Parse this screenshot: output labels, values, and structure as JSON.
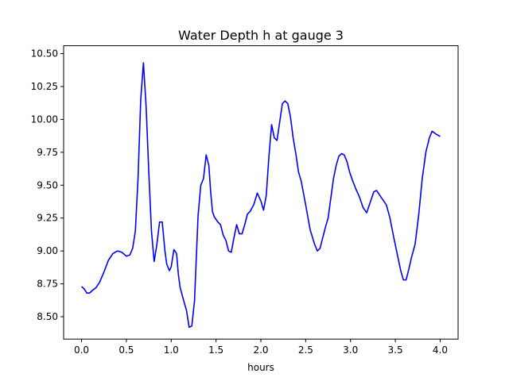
{
  "chart_data": {
    "type": "line",
    "title": "Water Depth h at gauge 3",
    "xlabel": "hours",
    "ylabel": "",
    "xlim": [
      -0.2,
      4.2
    ],
    "ylim": [
      8.33,
      10.56
    ],
    "xticks": [
      0.0,
      0.5,
      1.0,
      1.5,
      2.0,
      2.5,
      3.0,
      3.5,
      4.0
    ],
    "xtick_labels": [
      "0.0",
      "0.5",
      "1.0",
      "1.5",
      "2.0",
      "2.5",
      "3.0",
      "3.5",
      "4.0"
    ],
    "yticks": [
      8.5,
      8.75,
      9.0,
      9.25,
      9.5,
      9.75,
      10.0,
      10.25,
      10.5
    ],
    "ytick_labels": [
      "8.50",
      "8.75",
      "9.00",
      "9.25",
      "9.50",
      "9.75",
      "10.00",
      "10.25",
      "10.50"
    ],
    "grid": false,
    "series": [
      {
        "color": "#0000ff",
        "x": [
          0.0,
          0.03,
          0.06,
          0.09,
          0.12,
          0.16,
          0.2,
          0.25,
          0.3,
          0.35,
          0.4,
          0.45,
          0.5,
          0.54,
          0.57,
          0.6,
          0.63,
          0.66,
          0.69,
          0.72,
          0.75,
          0.78,
          0.81,
          0.84,
          0.87,
          0.9,
          0.93,
          0.95,
          0.98,
          1.0,
          1.03,
          1.06,
          1.08,
          1.1,
          1.12,
          1.14,
          1.17,
          1.2,
          1.23,
          1.26,
          1.28,
          1.3,
          1.33,
          1.36,
          1.39,
          1.42,
          1.44,
          1.46,
          1.48,
          1.5,
          1.52,
          1.55,
          1.58,
          1.61,
          1.64,
          1.67,
          1.7,
          1.73,
          1.76,
          1.79,
          1.82,
          1.85,
          1.88,
          1.92,
          1.96,
          2.0,
          2.03,
          2.06,
          2.09,
          2.12,
          2.15,
          2.18,
          2.21,
          2.24,
          2.27,
          2.3,
          2.33,
          2.36,
          2.39,
          2.42,
          2.45,
          2.5,
          2.55,
          2.6,
          2.63,
          2.66,
          2.69,
          2.72,
          2.75,
          2.78,
          2.81,
          2.84,
          2.87,
          2.9,
          2.93,
          2.96,
          2.99,
          3.02,
          3.06,
          3.1,
          3.14,
          3.18,
          3.22,
          3.26,
          3.29,
          3.32,
          3.36,
          3.4,
          3.44,
          3.48,
          3.52,
          3.56,
          3.59,
          3.62,
          3.65,
          3.68,
          3.72,
          3.76,
          3.8,
          3.84,
          3.88,
          3.91,
          3.95,
          4.0
        ],
        "y": [
          8.73,
          8.71,
          8.68,
          8.68,
          8.7,
          8.72,
          8.76,
          8.84,
          8.93,
          8.98,
          9.0,
          8.99,
          8.96,
          8.97,
          9.02,
          9.15,
          9.55,
          10.15,
          10.43,
          10.1,
          9.6,
          9.15,
          8.92,
          9.05,
          9.22,
          9.22,
          9.0,
          8.9,
          8.85,
          8.88,
          9.01,
          8.98,
          8.82,
          8.72,
          8.67,
          8.62,
          8.55,
          8.42,
          8.43,
          8.62,
          8.95,
          9.27,
          9.5,
          9.55,
          9.73,
          9.65,
          9.45,
          9.3,
          9.26,
          9.24,
          9.22,
          9.2,
          9.12,
          9.08,
          9.0,
          8.99,
          9.1,
          9.2,
          9.13,
          9.13,
          9.2,
          9.28,
          9.3,
          9.35,
          9.44,
          9.38,
          9.31,
          9.42,
          9.72,
          9.96,
          9.86,
          9.84,
          9.98,
          10.12,
          10.14,
          10.12,
          10.02,
          9.86,
          9.74,
          9.6,
          9.53,
          9.35,
          9.16,
          9.05,
          9.0,
          9.02,
          9.1,
          9.18,
          9.25,
          9.4,
          9.55,
          9.65,
          9.72,
          9.74,
          9.73,
          9.68,
          9.6,
          9.54,
          9.47,
          9.41,
          9.33,
          9.29,
          9.37,
          9.45,
          9.46,
          9.43,
          9.39,
          9.35,
          9.25,
          9.11,
          8.98,
          8.85,
          8.78,
          8.78,
          8.86,
          8.95,
          9.05,
          9.27,
          9.55,
          9.75,
          9.86,
          9.91,
          9.89,
          9.87
        ]
      }
    ]
  }
}
